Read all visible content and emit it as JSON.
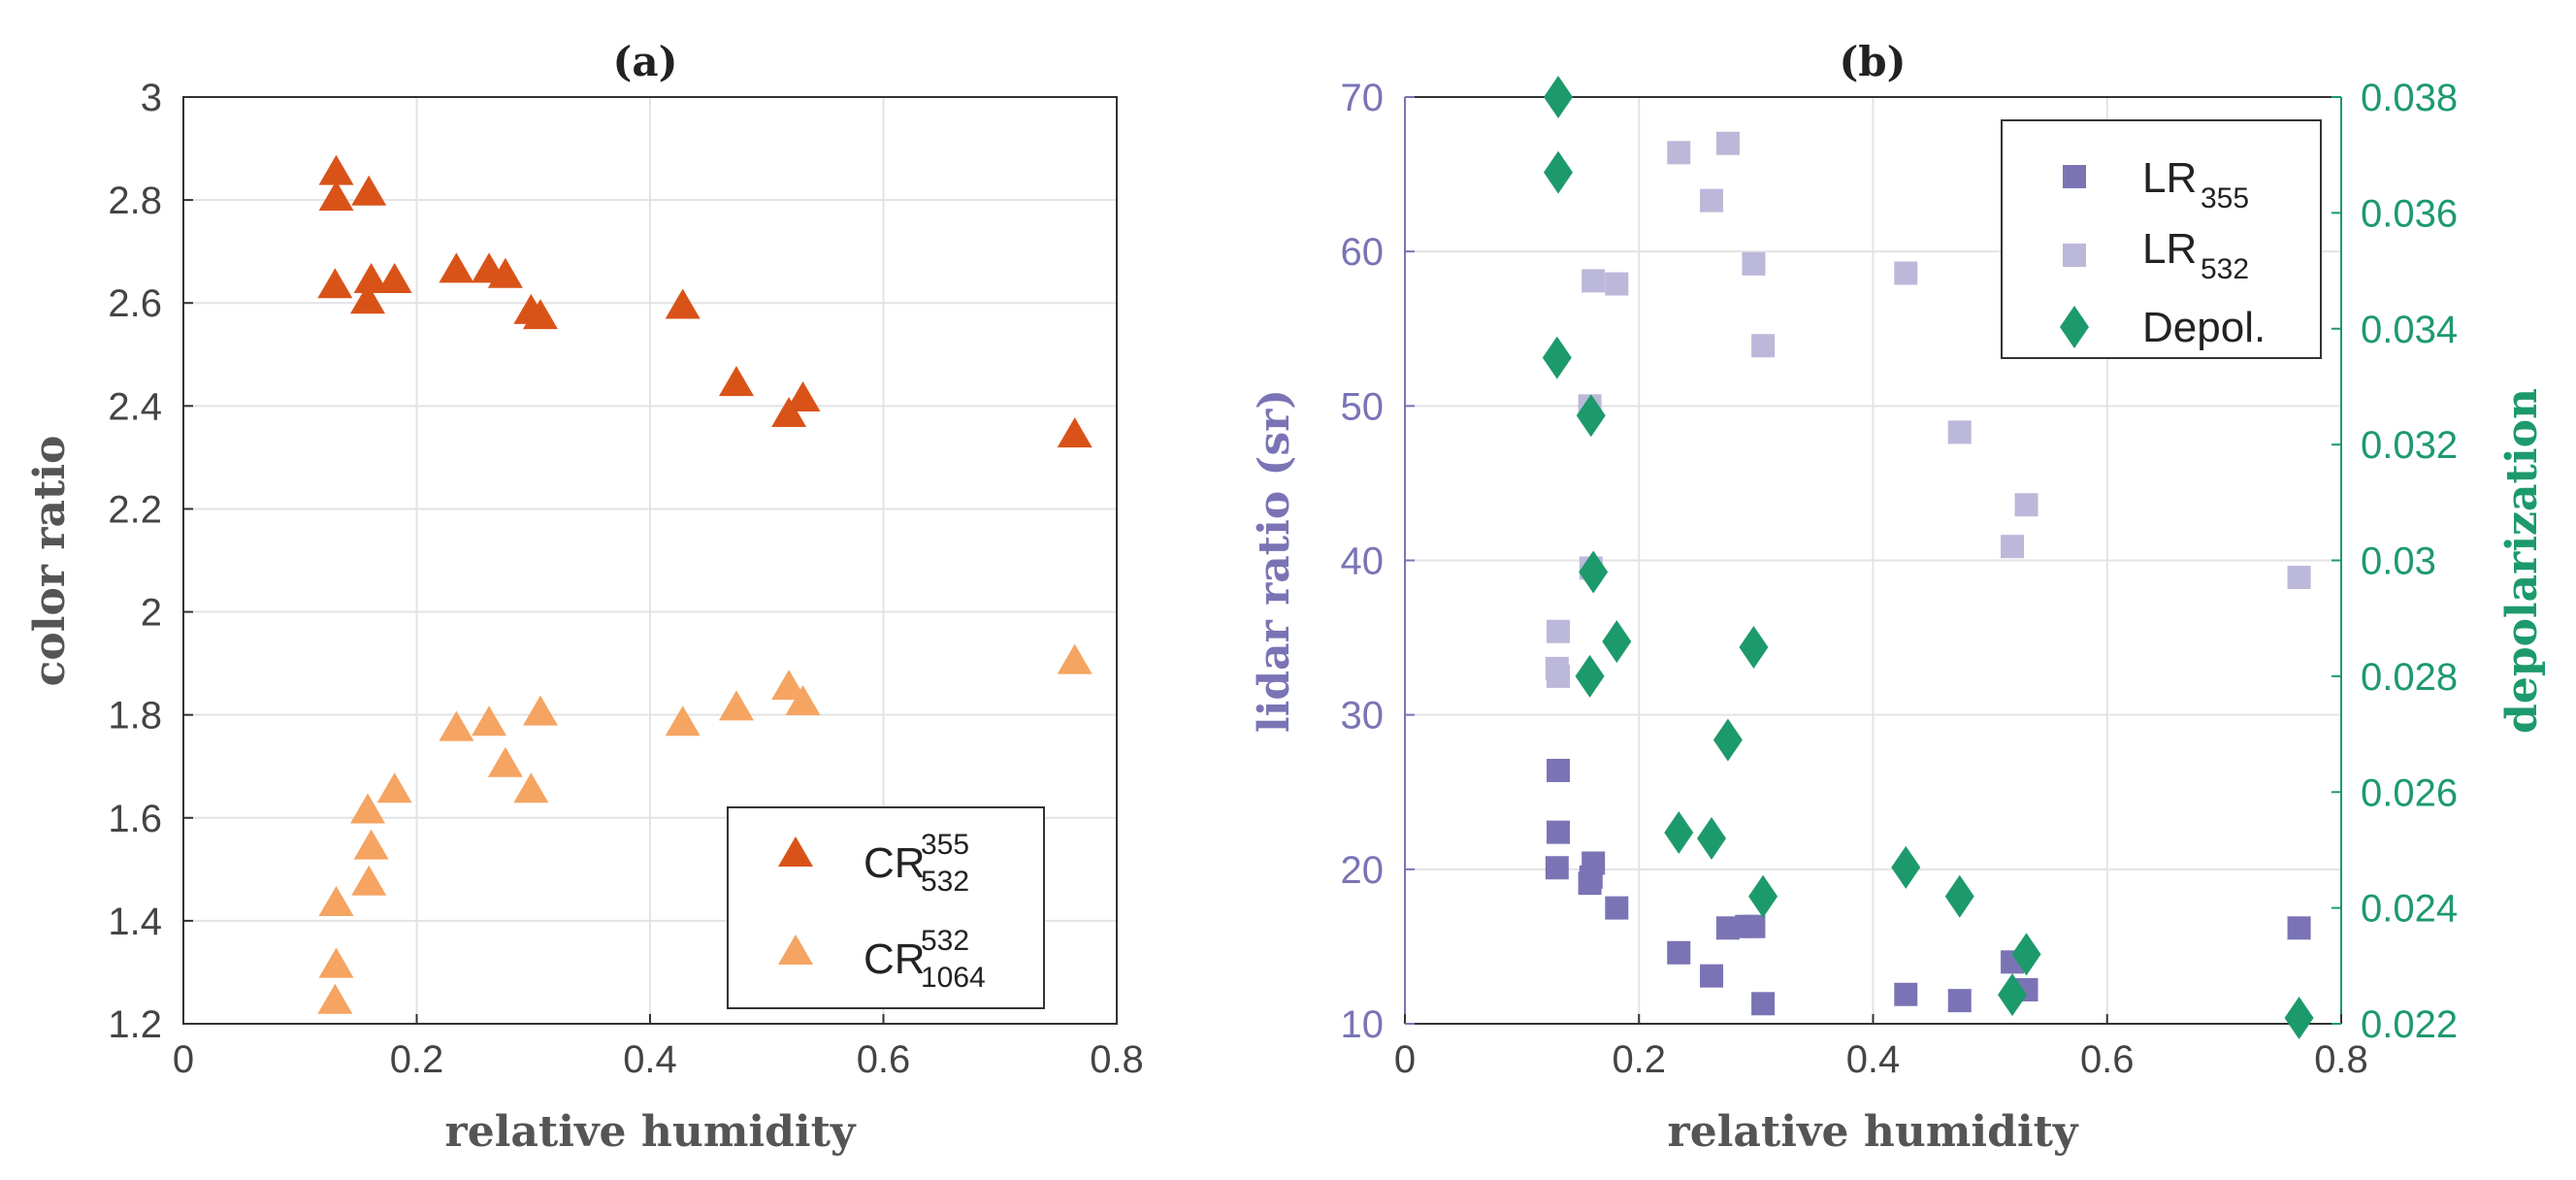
{
  "colors": {
    "cr355": "#d95319",
    "cr532": "#f5a462",
    "lr355": "#7a74b5",
    "lr532": "#bcb8da",
    "depol": "#1d9a6c",
    "depol_axis": "#1d9a6c",
    "lidar_axis": "#7a74b5",
    "grid": "#e3e3e3",
    "axis": "#333333"
  },
  "chart_data": [
    {
      "type": "scatter",
      "title": "(a)",
      "xlabel": "relative humidity",
      "ylabel": "color ratio",
      "xlim": [
        0,
        0.8
      ],
      "ylim": [
        1.2,
        3
      ],
      "xticks": [
        "0",
        "0.2",
        "0.4",
        "0.6",
        "0.8"
      ],
      "yticks": [
        "1.2",
        "1.4",
        "1.6",
        "1.8",
        "2",
        "2.2",
        "2.4",
        "2.6",
        "2.8",
        "3"
      ],
      "grid": true,
      "legend": {
        "placement": "bottom-right",
        "entries": [
          {
            "base": "CR",
            "sup": "355",
            "sub": "532"
          },
          {
            "base": "CR",
            "sup": "532",
            "sub": "1064"
          }
        ]
      },
      "series": [
        {
          "key": "cr355",
          "marker": "triangle",
          "x": [
            0.131,
            0.131,
            0.13,
            0.159,
            0.158,
            0.161,
            0.181,
            0.234,
            0.262,
            0.276,
            0.298,
            0.306,
            0.428,
            0.474,
            0.519,
            0.531,
            0.764
          ],
          "y": [
            2.85,
            2.8,
            2.63,
            2.81,
            2.6,
            2.64,
            2.64,
            2.66,
            2.66,
            2.65,
            2.58,
            2.57,
            2.59,
            2.44,
            2.38,
            2.41,
            2.34
          ]
        },
        {
          "key": "cr532",
          "marker": "triangle",
          "x": [
            0.131,
            0.131,
            0.13,
            0.158,
            0.161,
            0.159,
            0.181,
            0.234,
            0.262,
            0.276,
            0.298,
            0.306,
            0.428,
            0.474,
            0.519,
            0.531,
            0.764
          ],
          "y": [
            1.43,
            1.31,
            1.24,
            1.61,
            1.54,
            1.47,
            1.65,
            1.77,
            1.78,
            1.7,
            1.65,
            1.8,
            1.78,
            1.81,
            1.85,
            1.82,
            1.9
          ]
        }
      ]
    },
    {
      "type": "scatter",
      "title": "(b)",
      "xlabel": "relative humidity",
      "ylabel": "lidar ratio (sr)",
      "y2label": "depolarization",
      "xlim": [
        0,
        0.8
      ],
      "ylim": [
        10,
        70
      ],
      "y2lim": [
        0.022,
        0.038
      ],
      "xticks": [
        "0",
        "0.2",
        "0.4",
        "0.6",
        "0.8"
      ],
      "yticks": [
        "10",
        "20",
        "30",
        "40",
        "50",
        "60",
        "70"
      ],
      "y2ticks": [
        "0.022",
        "0.024",
        "0.026",
        "0.028",
        "0.03",
        "0.032",
        "0.034",
        "0.036",
        "0.038"
      ],
      "grid": true,
      "legend": {
        "placement": "top-right",
        "entries": [
          {
            "base": "LR",
            "sub": "355"
          },
          {
            "base": "LR",
            "sub": "532"
          },
          {
            "base": "Depol."
          }
        ]
      },
      "series": [
        {
          "key": "lr355",
          "marker": "square",
          "axis": "left",
          "x": [
            0.131,
            0.131,
            0.13,
            0.158,
            0.161,
            0.159,
            0.181,
            0.234,
            0.262,
            0.276,
            0.292,
            0.298,
            0.306,
            0.428,
            0.474,
            0.519,
            0.531,
            0.764
          ],
          "y": [
            26.4,
            22.4,
            20.1,
            19.1,
            20.4,
            19.5,
            17.5,
            14.6,
            13.1,
            16.2,
            16.3,
            16.3,
            11.3,
            11.9,
            11.5,
            14.0,
            12.2,
            16.2
          ]
        },
        {
          "key": "lr532",
          "marker": "square",
          "axis": "left",
          "x": [
            0.131,
            0.13,
            0.131,
            0.159,
            0.158,
            0.161,
            0.181,
            0.234,
            0.262,
            0.276,
            0.298,
            0.306,
            0.428,
            0.474,
            0.519,
            0.531,
            0.764
          ],
          "y": [
            35.4,
            33.0,
            32.5,
            39.5,
            50.0,
            58.1,
            57.9,
            66.4,
            63.3,
            67.0,
            59.2,
            53.9,
            58.6,
            48.3,
            40.9,
            43.6,
            38.9
          ]
        },
        {
          "key": "depol",
          "marker": "diamond",
          "axis": "right",
          "x": [
            0.131,
            0.131,
            0.13,
            0.159,
            0.161,
            0.158,
            0.181,
            0.234,
            0.262,
            0.276,
            0.298,
            0.306,
            0.428,
            0.474,
            0.519,
            0.531,
            0.764
          ],
          "y": [
            0.038,
            0.0367,
            0.0335,
            0.0325,
            0.0298,
            0.028,
            0.0286,
            0.0253,
            0.0252,
            0.0269,
            0.0285,
            0.0242,
            0.0247,
            0.0242,
            0.0225,
            0.0232,
            0.0221
          ]
        }
      ]
    }
  ]
}
